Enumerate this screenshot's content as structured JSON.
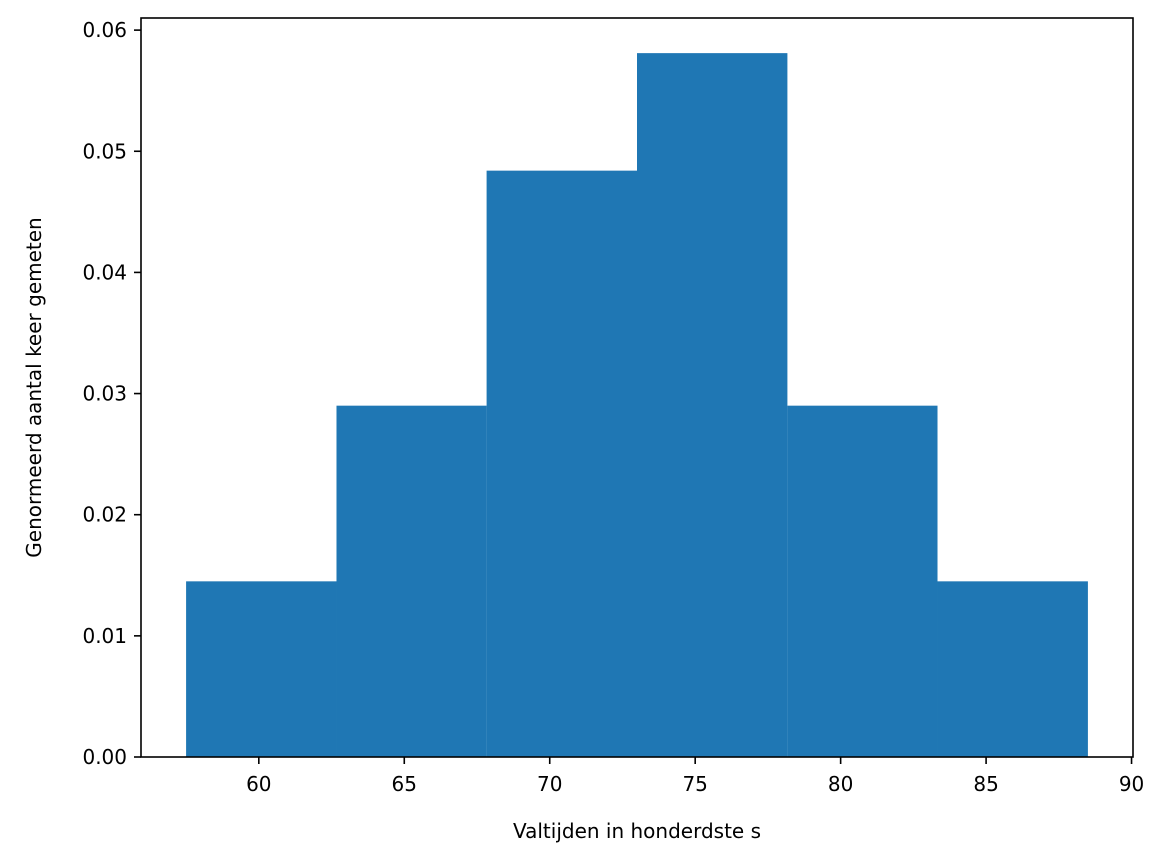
{
  "chart_data": {
    "type": "bar",
    "title": "",
    "xlabel": "Valtijden in honderdste s",
    "ylabel": "Genormeerd aantal keer gemeten",
    "xlim": [
      55.95,
      90.05
    ],
    "ylim": [
      0,
      0.061
    ],
    "x_ticks": [
      60,
      65,
      70,
      75,
      80,
      85,
      90
    ],
    "y_ticks": [
      0.0,
      0.01,
      0.02,
      0.03,
      0.04,
      0.05,
      0.06
    ],
    "y_tick_decimals": 2,
    "bins": [
      {
        "start": 57.5,
        "end": 62.67,
        "value": 0.0145
      },
      {
        "start": 62.67,
        "end": 67.83,
        "value": 0.029
      },
      {
        "start": 67.83,
        "end": 73.0,
        "value": 0.0484
      },
      {
        "start": 73.0,
        "end": 78.17,
        "value": 0.0581
      },
      {
        "start": 78.17,
        "end": 83.33,
        "value": 0.029
      },
      {
        "start": 83.33,
        "end": 88.5,
        "value": 0.0145
      }
    ],
    "bar_color": "#1f77b4",
    "grid": false,
    "legend": false
  }
}
